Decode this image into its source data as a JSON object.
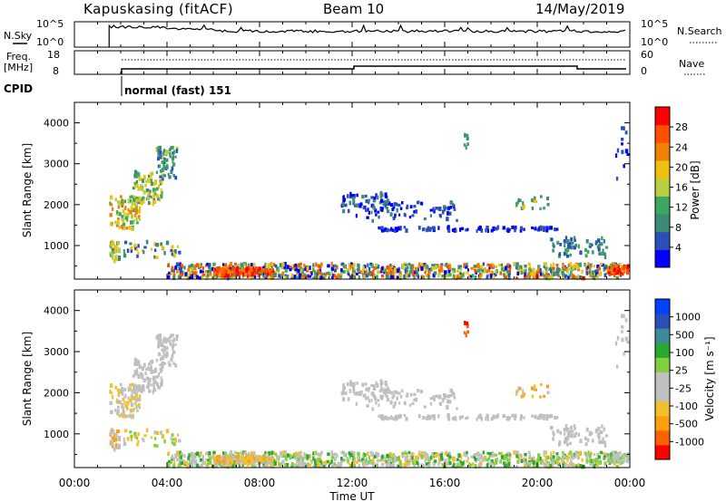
{
  "header": {
    "station": "Kapuskasing (fitACF)",
    "beam": "Beam 10",
    "date": "14/May/2019"
  },
  "sky_panel": {
    "left_label": "N.Sky",
    "right_label": "N.Search",
    "ticks_left": [
      "10^5",
      "10^0"
    ],
    "ticks_right": [
      "10^5",
      "10^0"
    ]
  },
  "freq_panel": {
    "label_line1": "Freq.",
    "label_line2": "[MHz]",
    "ticks_left": [
      "18",
      "8"
    ],
    "ticks_right": [
      "60",
      "0"
    ],
    "right_label": "Nave"
  },
  "cpid": {
    "label": "CPID",
    "mode_text": "normal (fast) 151"
  },
  "colors": {
    "power": [
      "#0000ff",
      "#2b4fb8",
      "#3d8a7a",
      "#3aa860",
      "#b8d040",
      "#f0c010",
      "#f08000",
      "#ff5000",
      "#ff0000"
    ],
    "velocity": [
      "#ff0000",
      "#ff6000",
      "#ff9f10",
      "#f0c030",
      "#c0c0c0",
      "#c0c0c0",
      "#80d040",
      "#2aa830",
      "#3d8a9a",
      "#2b4fb8",
      "#0040ff"
    ]
  },
  "chart_data": [
    {
      "type": "heatmap",
      "panel": "power",
      "ylabel": "Slant Range [km]",
      "y_ticks": [
        "1000",
        "2000",
        "3000",
        "4000"
      ],
      "ylim": [
        180,
        4500
      ],
      "xlim_hours": [
        0,
        24
      ],
      "colorbar": {
        "label": "Power [dB]",
        "ticks": [
          "4",
          "8",
          "12",
          "16",
          "20",
          "24",
          "28"
        ],
        "range": [
          0,
          30
        ]
      }
    },
    {
      "type": "heatmap",
      "panel": "velocity",
      "ylabel": "Slant Range [km]",
      "y_ticks": [
        "1000",
        "2000",
        "3000",
        "4000"
      ],
      "ylim": [
        180,
        4500
      ],
      "xlim_hours": [
        0,
        24
      ],
      "x_ticks": [
        "00:00",
        "04:00",
        "08:00",
        "12:00",
        "16:00",
        "20:00",
        "00:00"
      ],
      "xlabel": "Time UT",
      "colorbar": {
        "label": "Velocity [m s⁻¹]",
        "ticks": [
          "-1000",
          "-500",
          "-100",
          "-25",
          "25",
          "100",
          "500",
          "1000"
        ]
      }
    }
  ]
}
